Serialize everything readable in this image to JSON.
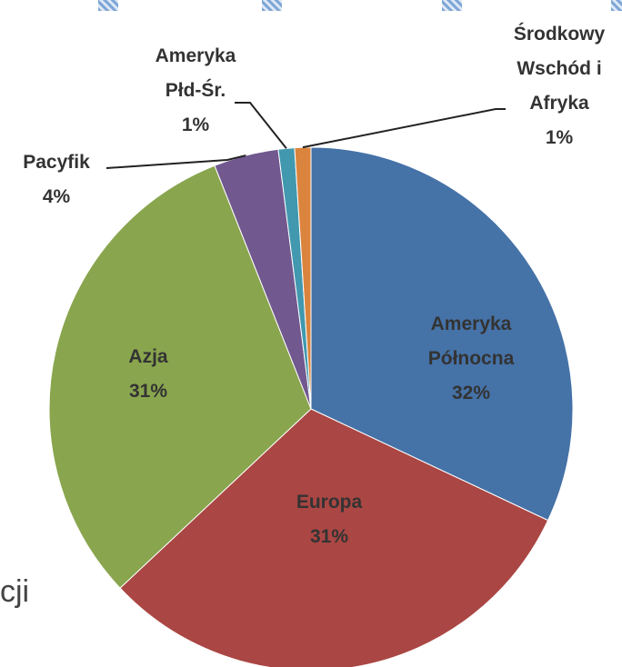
{
  "chart_data": {
    "type": "pie",
    "categories": [
      "Ameryka Północna",
      "Europa",
      "Azja",
      "Pacyfik",
      "Ameryka Płd-Śr.",
      "Środkowy Wschód i Afryka"
    ],
    "values": [
      32,
      31,
      31,
      4,
      1,
      1
    ],
    "value_labels": [
      "32%",
      "31%",
      "31%",
      "4%",
      "1%",
      "1%"
    ],
    "colors": [
      "#4572a7",
      "#aa4643",
      "#89a54e",
      "#71588f",
      "#4198af",
      "#db843d"
    ]
  },
  "background_text": "cji"
}
